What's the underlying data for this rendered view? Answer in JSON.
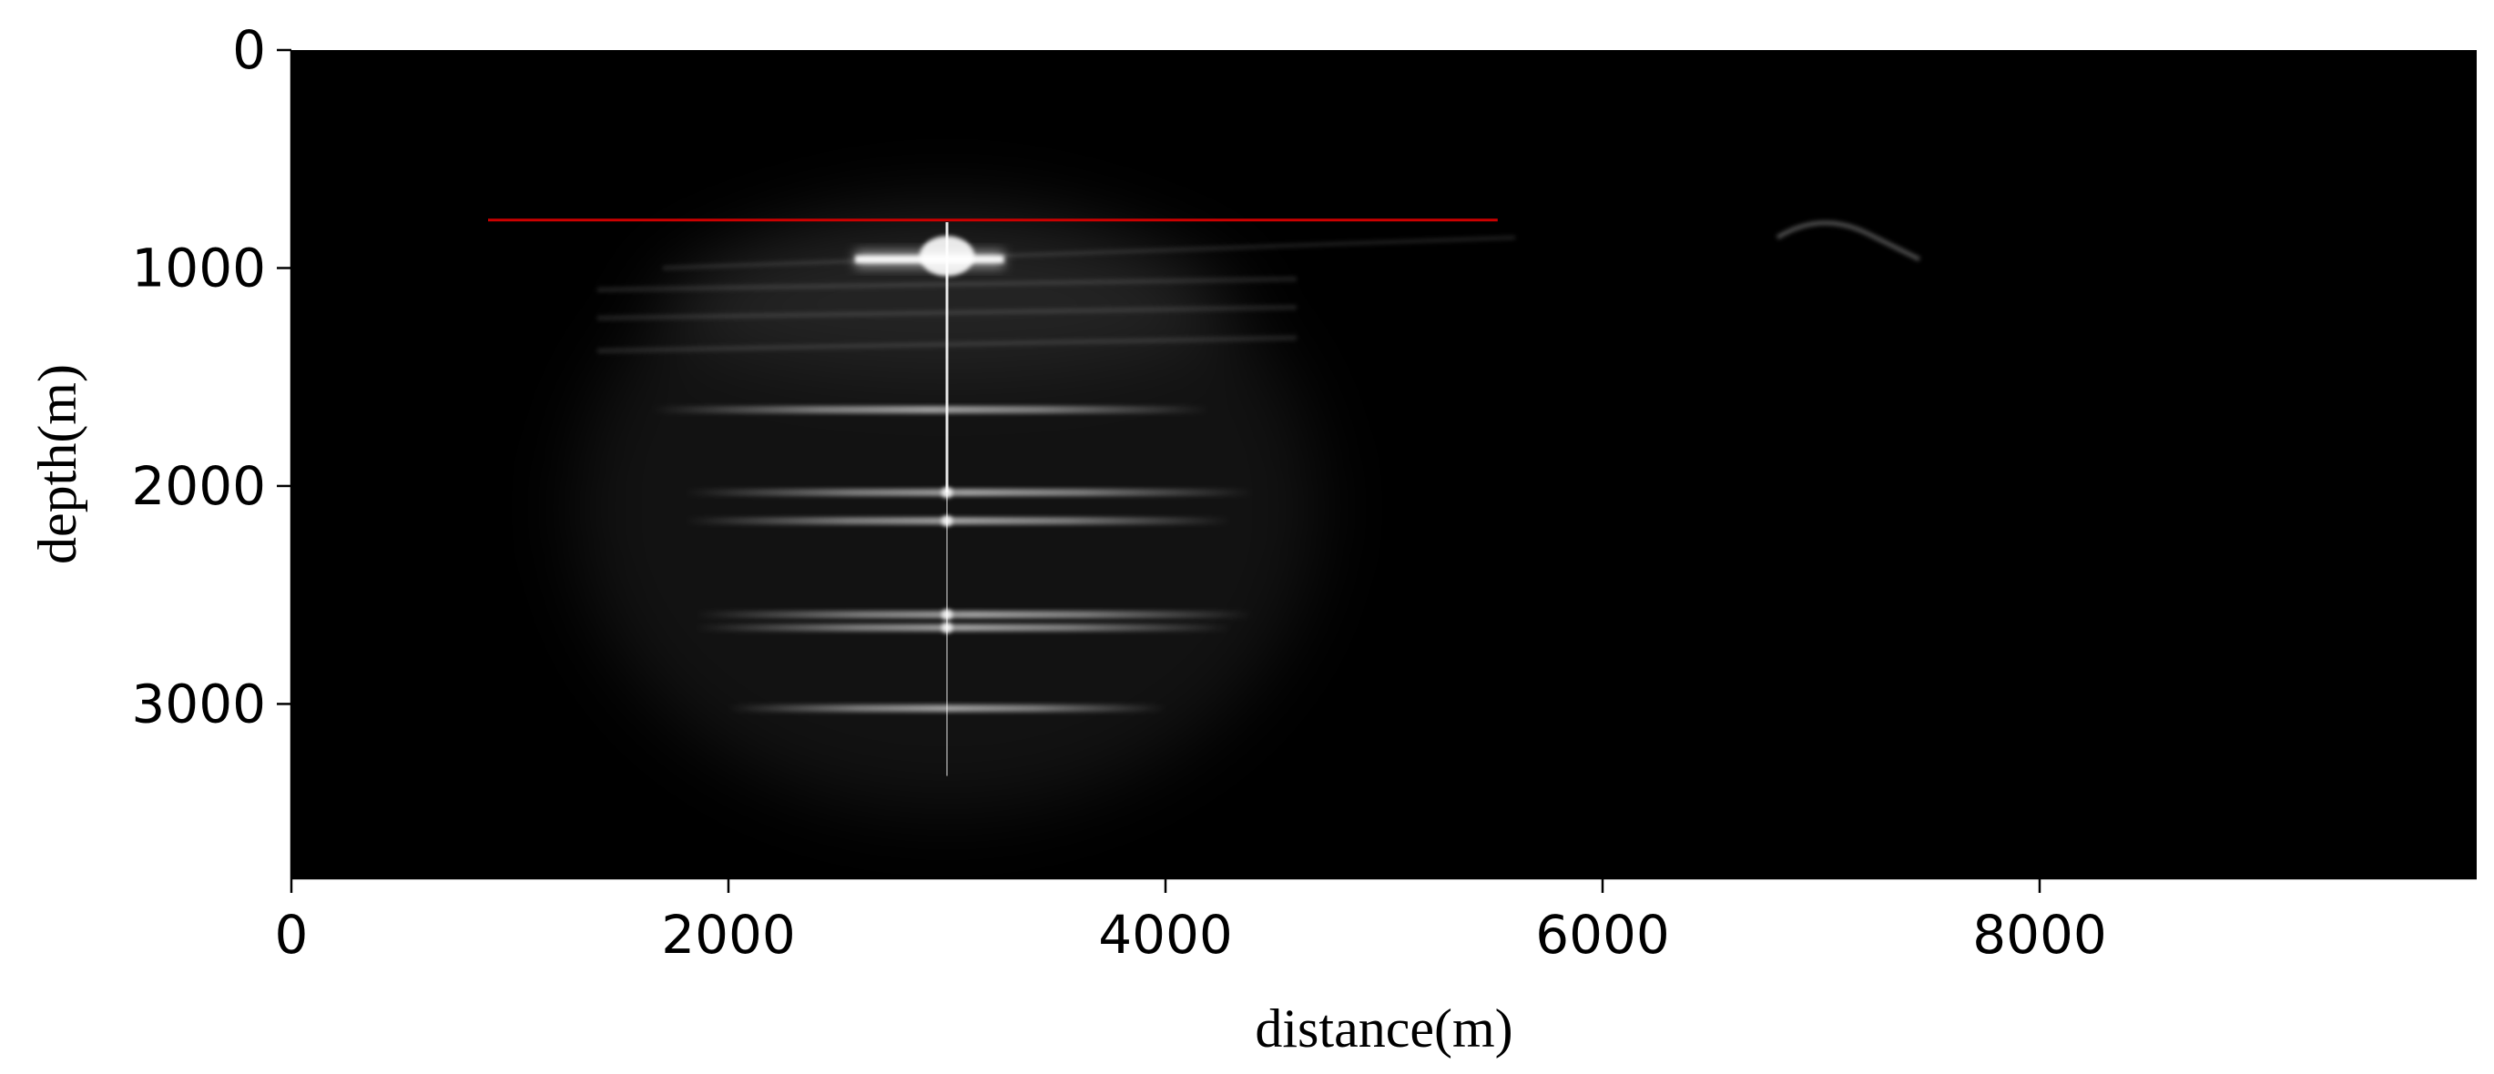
{
  "chart_data": {
    "type": "heatmap",
    "title": "",
    "xlabel": "distance(m)",
    "ylabel": "depth(m)",
    "xlim": [
      0,
      10000
    ],
    "ylim": [
      3800,
      0
    ],
    "y_inverted": true,
    "x_ticks": [
      "0",
      "2000",
      "4000",
      "6000",
      "8000"
    ],
    "x_tick_values": [
      0,
      2000,
      4000,
      6000,
      8000
    ],
    "y_ticks": [
      "0",
      "1000",
      "2000",
      "3000"
    ],
    "y_tick_values": [
      0,
      1000,
      2000,
      3000
    ],
    "grid": false,
    "background_color": "#000000",
    "colormap": "gray",
    "overlay_line": {
      "color": "#cc0000",
      "x": [
        900,
        5520
      ],
      "depth": 780
    },
    "features": {
      "vertical_trace": {
        "x": 3000,
        "depth_from": 790,
        "depth_to": 3330
      },
      "cross_bar": {
        "x": [
          2580,
          3260
        ],
        "depth": 960
      },
      "reflectors": [
        {
          "x": [
            1650,
            4200
          ],
          "depth": 1650
        },
        {
          "x": [
            1800,
            4400
          ],
          "depth": 2030
        },
        {
          "x": [
            1800,
            4300
          ],
          "depth": 2160
        },
        {
          "x": [
            1850,
            4400
          ],
          "depth": 2590
        },
        {
          "x": [
            1850,
            4300
          ],
          "depth": 2650
        },
        {
          "x": [
            2000,
            4000
          ],
          "depth": 3020
        }
      ],
      "faint_bump": {
        "x": [
          6800,
          7450
        ],
        "depth": 820
      }
    }
  }
}
